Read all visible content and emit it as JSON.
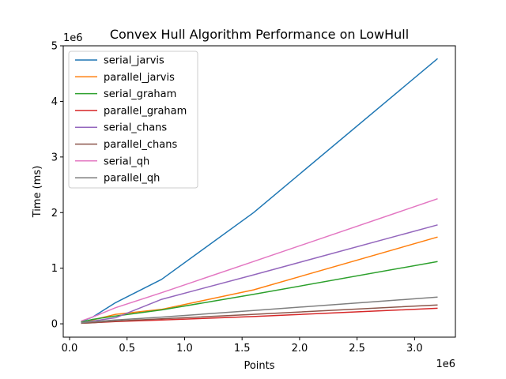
{
  "chart_data": {
    "type": "line",
    "title": "Convex Hull Algorithm Performance on LowHull",
    "xlabel": "Points",
    "ylabel": "Time (ms)",
    "x_offset_label": "1e6",
    "y_offset_label": "1e6",
    "xlim": [
      -0.055,
      3.355
    ],
    "ylim": [
      -0.24,
      5.0
    ],
    "x_ticks": [
      0.0,
      0.5,
      1.0,
      1.5,
      2.0,
      2.5,
      3.0
    ],
    "x_tick_labels": [
      "0.0",
      "0.5",
      "1.0",
      "1.5",
      "2.0",
      "2.5",
      "3.0"
    ],
    "y_ticks": [
      0,
      1,
      2,
      3,
      4,
      5
    ],
    "y_tick_labels": [
      "0",
      "1",
      "2",
      "3",
      "4",
      "5"
    ],
    "grid": false,
    "legend_position": "top-left",
    "x": [
      0.1,
      0.2,
      0.4,
      0.8,
      1.6,
      3.2
    ],
    "series": [
      {
        "name": "serial_jarvis",
        "color": "#1f77b4",
        "values": [
          0.04,
          0.12,
          0.38,
          0.8,
          2.0,
          4.77
        ]
      },
      {
        "name": "parallel_jarvis",
        "color": "#ff7f0e",
        "values": [
          0.03,
          0.07,
          0.17,
          0.26,
          0.61,
          1.56
        ]
      },
      {
        "name": "serial_graham",
        "color": "#2ca02c",
        "values": [
          0.03,
          0.08,
          0.14,
          0.25,
          0.53,
          1.12
        ]
      },
      {
        "name": "parallel_graham",
        "color": "#d62728",
        "values": [
          0.01,
          0.02,
          0.04,
          0.07,
          0.13,
          0.28
        ]
      },
      {
        "name": "serial_chans",
        "color": "#9467bd",
        "values": [
          0.02,
          0.05,
          0.11,
          0.44,
          0.88,
          1.78
        ]
      },
      {
        "name": "parallel_chans",
        "color": "#8c564b",
        "values": [
          0.01,
          0.02,
          0.05,
          0.09,
          0.17,
          0.34
        ]
      },
      {
        "name": "serial_qh",
        "color": "#e377c2",
        "values": [
          0.05,
          0.12,
          0.29,
          0.56,
          1.12,
          2.25
        ]
      },
      {
        "name": "parallel_qh",
        "color": "#7f7f7f",
        "values": [
          0.02,
          0.04,
          0.07,
          0.12,
          0.24,
          0.48
        ]
      }
    ]
  }
}
